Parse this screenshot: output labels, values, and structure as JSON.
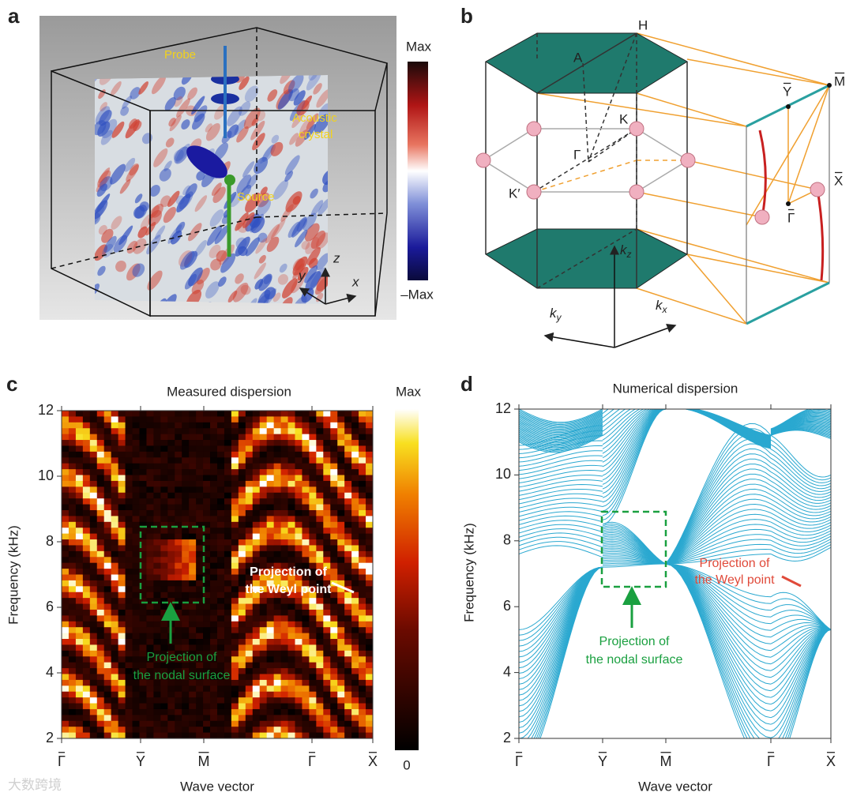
{
  "figure": {
    "watermark": "大数跨境",
    "panel_a": {
      "label": "a",
      "probe": "Probe",
      "crystal": [
        "Acoustic",
        "crystal"
      ],
      "source": "Source",
      "axes": {
        "x": "x",
        "y": "y",
        "z": "z"
      },
      "colorbar": {
        "max": "Max",
        "min": "–Max"
      }
    },
    "panel_b": {
      "label": "b",
      "points": {
        "H": "H",
        "A": "A",
        "K": "K",
        "Gamma": "Γ",
        "K_prime": "K′",
        "M_bar": "M",
        "Y_bar": "Y",
        "X_bar": "X",
        "Gamma_bar": "Γ"
      },
      "axes": {
        "kx": [
          "k",
          "x"
        ],
        "ky": [
          "k",
          "y"
        ],
        "kz": [
          "k",
          "z"
        ]
      }
    }
  },
  "chart_data": [
    {
      "type": "heatmap",
      "label": "c",
      "title": "Measured dispersion",
      "xlabel": "Wave vector",
      "ylabel": "Frequency (kHz)",
      "categories": [
        "Γ",
        "Y",
        "M",
        "Γ",
        "X"
      ],
      "ylim": [
        2,
        12
      ],
      "yticks": [
        2,
        4,
        6,
        8,
        10,
        12
      ],
      "colorbar": {
        "max": "Max",
        "min": 0
      },
      "annotations": {
        "nodal": [
          "Projection of",
          "the nodal surface"
        ],
        "weyl": [
          "Projection of",
          "the Weyl point"
        ]
      }
    },
    {
      "type": "line",
      "label": "d",
      "title": "Numerical dispersion",
      "xlabel": "Wave vector",
      "ylabel": "Frequency (kHz)",
      "categories": [
        "Γ",
        "Y",
        "M",
        "Γ",
        "X"
      ],
      "ylim": [
        2,
        12
      ],
      "yticks": [
        2,
        4,
        6,
        8,
        10,
        12
      ],
      "color": "#2aa8d0",
      "annotations": {
        "nodal": [
          "Projection of",
          "the nodal surface"
        ],
        "weyl": [
          "Projection of",
          "the Weyl point"
        ]
      }
    }
  ]
}
